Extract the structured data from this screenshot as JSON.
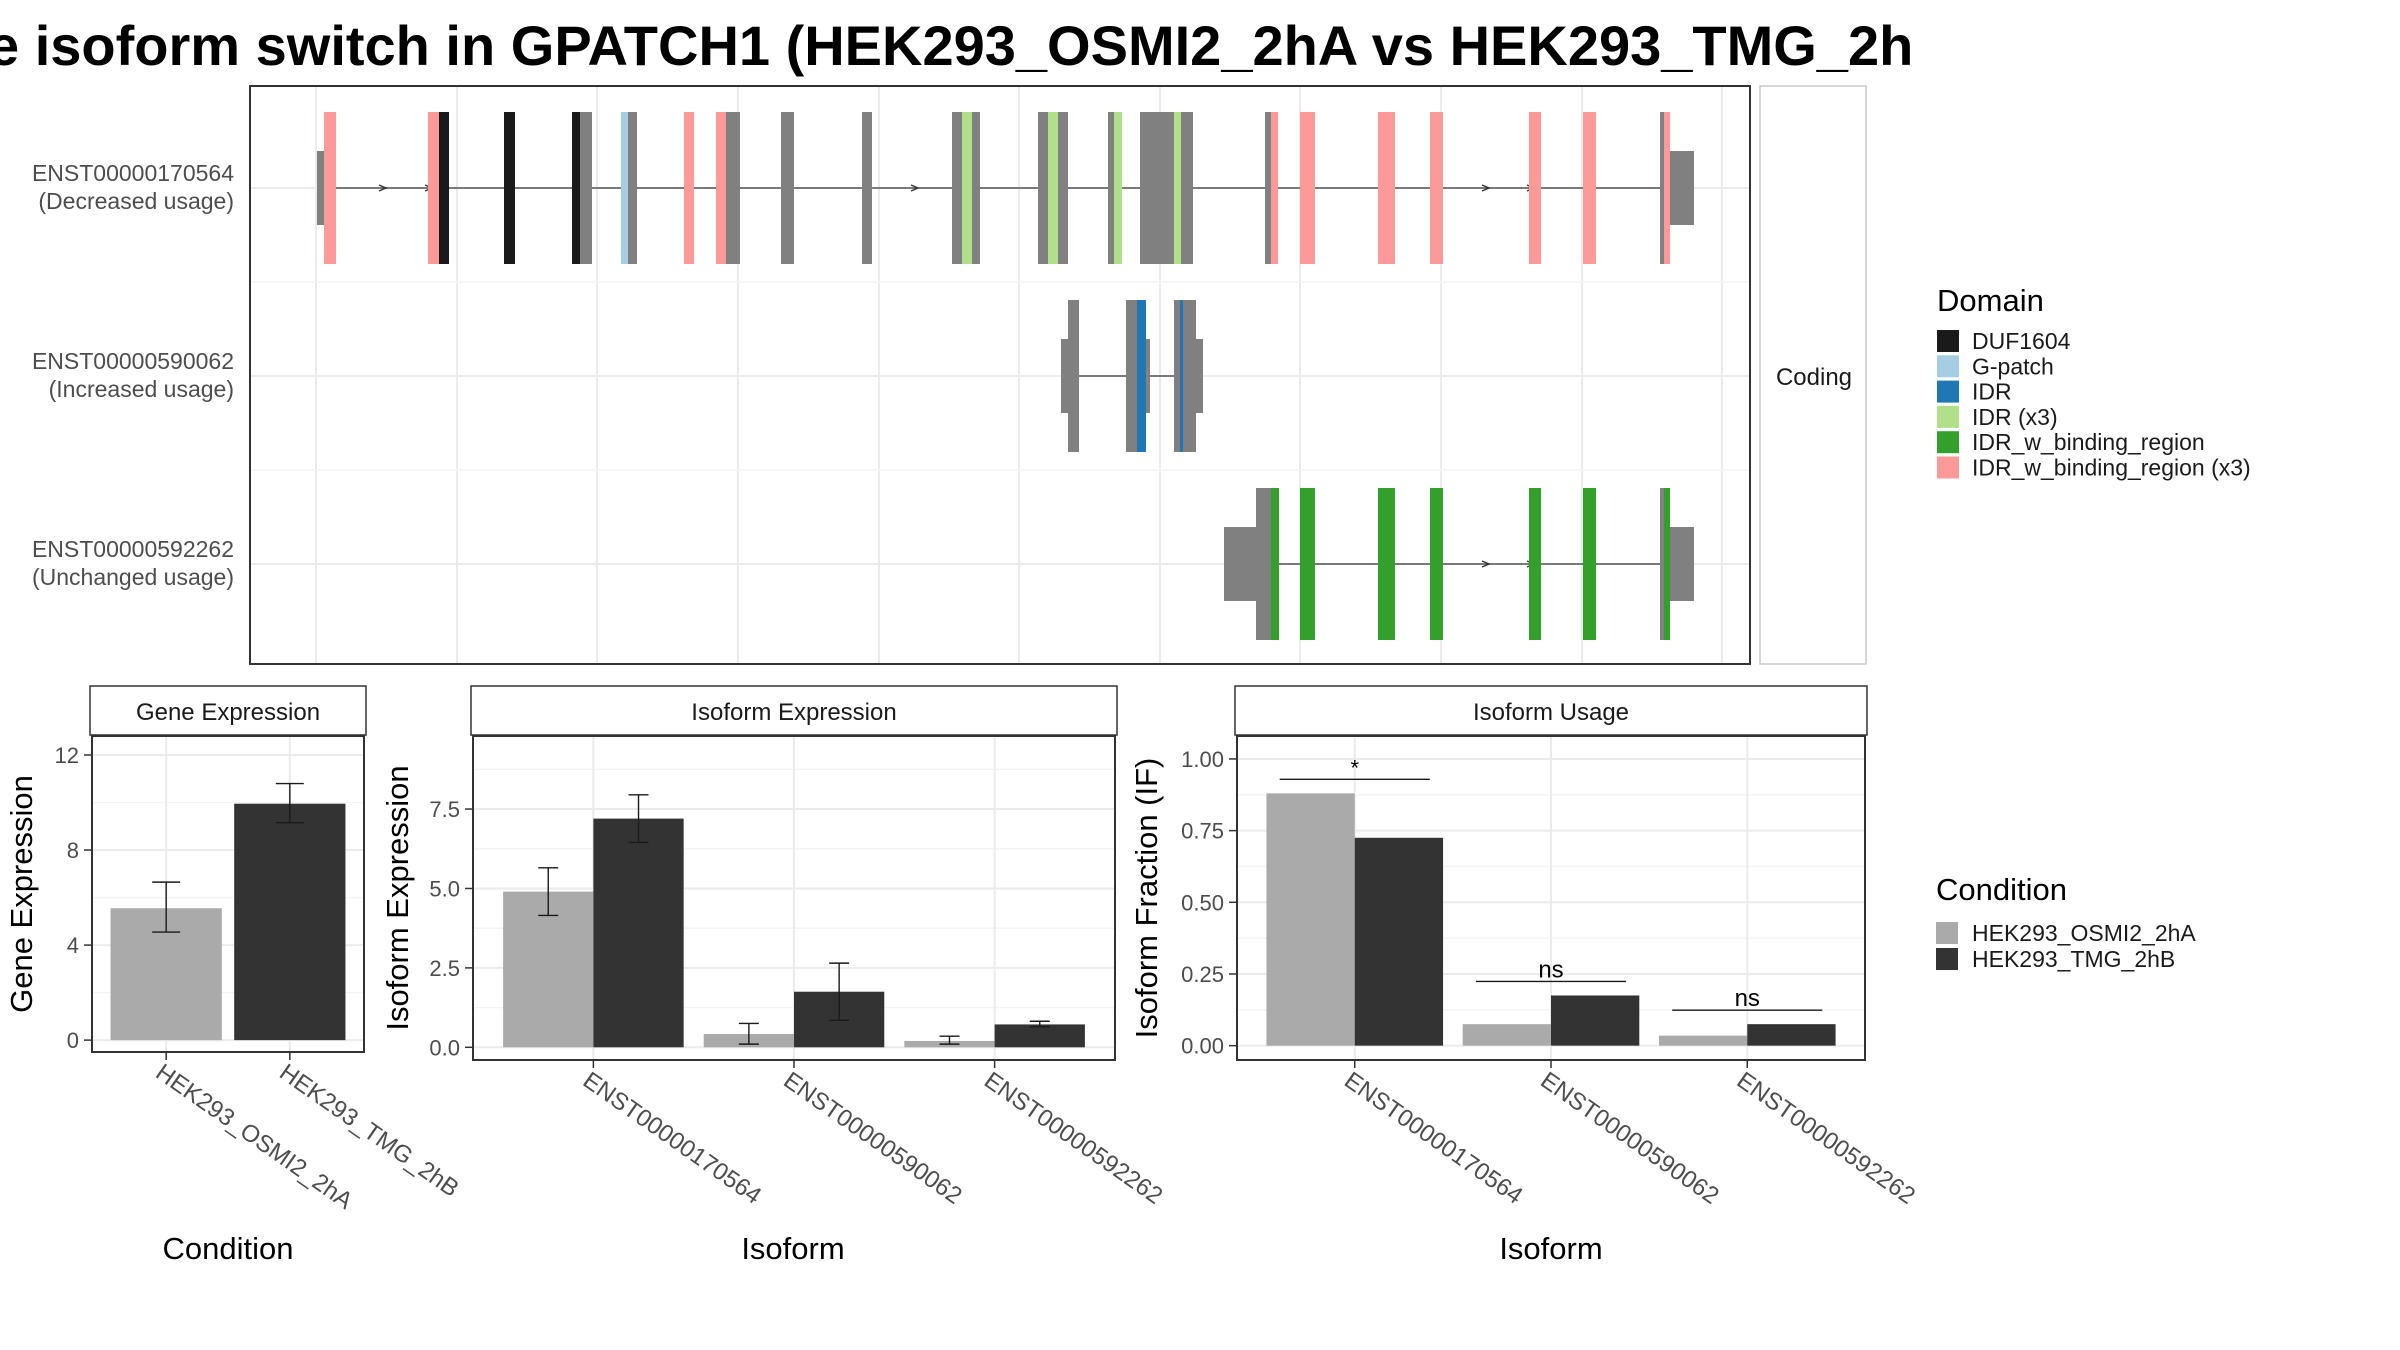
{
  "title": "e isoform switch in GPATCH1 (HEK293_OSMI2_2hA vs HEK293_TMG_2h",
  "colors": {
    "DUF1604": "#1a1a1a",
    "G-patch": "#a6cee3",
    "IDR": "#1f78b4",
    "IDR (x3)": "#b2df8a",
    "IDR_w_binding_region": "#33a02c",
    "IDR_w_binding_region (x3)": "#fb9a99",
    "utr": "#808080",
    "cond_a": "#aaaaaa",
    "cond_b": "#333333"
  },
  "transcript_panel": {
    "strip_label": "Coding",
    "transcripts": [
      {
        "id": "ENST00000170564",
        "usage": "(Decreased usage)"
      },
      {
        "id": "ENST00000590062",
        "usage": "(Increased usage)"
      },
      {
        "id": "ENST00000592262",
        "usage": "(Unchanged usage)"
      }
    ],
    "legend_title": "Domain",
    "domains": [
      "DUF1604",
      "G-patch",
      "IDR",
      "IDR (x3)",
      "IDR_w_binding_region",
      "IDR_w_binding_region (x3)"
    ]
  },
  "condition_legend": {
    "title": "Condition",
    "items": [
      "HEK293_OSMI2_2hA",
      "HEK293_TMG_2hB"
    ]
  },
  "chart_data": [
    {
      "type": "bar",
      "title": "Gene Expression",
      "xlabel": "Condition",
      "ylabel": "Gene Expression",
      "categories": [
        "HEK293_OSMI2_2hA",
        "HEK293_TMG_2hB"
      ],
      "values": [
        5.55,
        9.95
      ],
      "errors": [
        [
          4.55,
          6.65
        ],
        [
          9.15,
          10.8
        ]
      ],
      "yticks": [
        "0",
        "4",
        "8",
        "12"
      ],
      "ylim": [
        -0.5,
        12.8
      ]
    },
    {
      "type": "bar",
      "title": "Isoform Expression",
      "xlabel": "Isoform",
      "ylabel": "Isoform Expression",
      "categories": [
        "ENST00000170564",
        "ENST00000590062",
        "ENST00000592262"
      ],
      "series": [
        {
          "name": "HEK293_OSMI2_2hA",
          "values": [
            4.9,
            0.42,
            0.2
          ],
          "errors": [
            [
              4.15,
              5.65
            ],
            [
              0.1,
              0.75
            ],
            [
              0.1,
              0.35
            ]
          ]
        },
        {
          "name": "HEK293_TMG_2hB",
          "values": [
            7.2,
            1.75,
            0.72
          ],
          "errors": [
            [
              6.45,
              7.95
            ],
            [
              0.85,
              2.65
            ],
            [
              0.65,
              0.82
            ]
          ]
        }
      ],
      "yticks": [
        "0.0",
        "2.5",
        "5.0",
        "7.5"
      ],
      "ylim": [
        -0.4,
        9.8
      ]
    },
    {
      "type": "bar",
      "title": "Isoform Usage",
      "xlabel": "Isoform",
      "ylabel": "Isoform Fraction (IF)",
      "categories": [
        "ENST00000170564",
        "ENST00000590062",
        "ENST00000592262"
      ],
      "series": [
        {
          "name": "HEK293_OSMI2_2hA",
          "values": [
            0.88,
            0.075,
            0.035
          ]
        },
        {
          "name": "HEK293_TMG_2hB",
          "values": [
            0.725,
            0.175,
            0.075
          ]
        }
      ],
      "significance": [
        "*",
        "ns",
        "ns"
      ],
      "yticks": [
        "0.00",
        "0.25",
        "0.50",
        "0.75",
        "1.00"
      ],
      "ylim": [
        -0.05,
        1.08
      ]
    }
  ]
}
